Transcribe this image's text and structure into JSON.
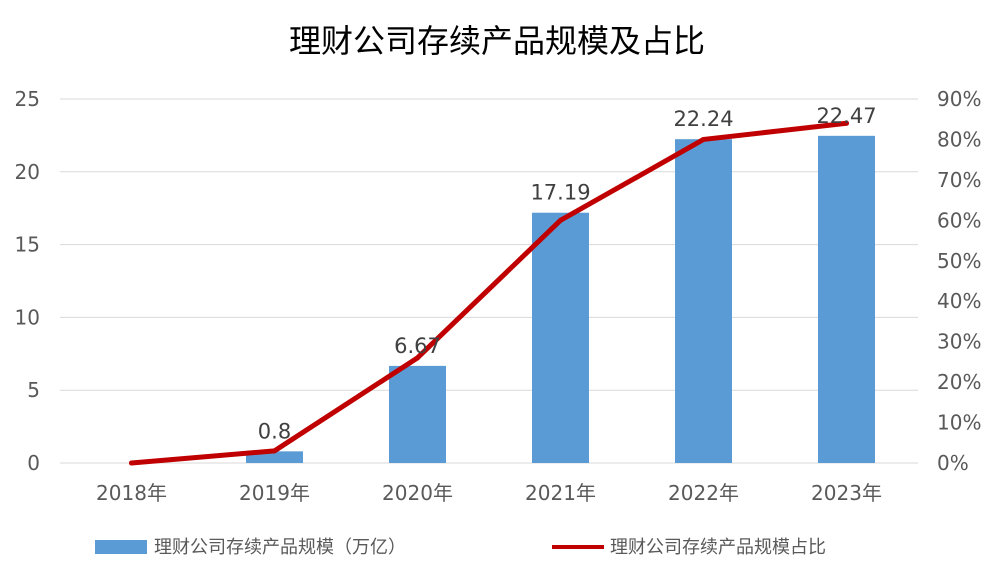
{
  "chart_data": {
    "type": "bar+line",
    "title": "理财公司存续产品规模及占比",
    "categories": [
      "2018年",
      "2019年",
      "2020年",
      "2021年",
      "2022年",
      "2023年"
    ],
    "series": [
      {
        "name": "理财公司存续产品规模（万亿）",
        "type": "bar",
        "axis": "left",
        "values": [
          0,
          0.8,
          6.67,
          17.19,
          22.24,
          22.47
        ],
        "labels": [
          "",
          "0.8",
          "6.67",
          "17.19",
          "22.24",
          "22.47"
        ]
      },
      {
        "name": "理财公司存续产品规模占比",
        "type": "line",
        "axis": "right",
        "values": [
          0,
          3,
          26,
          60,
          80,
          84
        ]
      }
    ],
    "y_left": {
      "min": 0,
      "max": 25,
      "ticks": [
        "0",
        "5",
        "10",
        "15",
        "20",
        "25"
      ]
    },
    "y_right": {
      "min": 0,
      "max": 90,
      "ticks": [
        "0%",
        "10%",
        "20%",
        "30%",
        "40%",
        "50%",
        "60%",
        "70%",
        "80%",
        "90%"
      ]
    },
    "grid": true,
    "legend_position": "bottom",
    "colors": {
      "bar": "#5b9bd5",
      "line": "#c00000",
      "grid": "#d9d9d9",
      "text": "#595959",
      "title": "#000000"
    }
  }
}
